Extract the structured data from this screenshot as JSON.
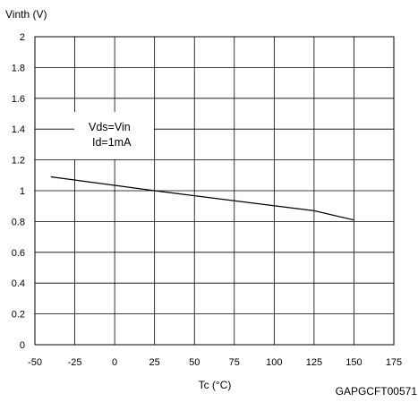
{
  "chart_data": {
    "type": "line",
    "ylabel": "Vinth (V)",
    "xlabel": "Tc (°C)",
    "xlim": [
      -50,
      175
    ],
    "ylim": [
      0,
      2
    ],
    "x_ticks": [
      -50,
      -25,
      0,
      25,
      50,
      75,
      100,
      125,
      150,
      175
    ],
    "x_tick_labels": [
      "-50",
      "-25",
      "0",
      "25",
      "50",
      "75",
      "100",
      "125",
      "150",
      "175"
    ],
    "y_ticks": [
      0,
      0.2,
      0.4,
      0.6,
      0.8,
      1,
      1.2,
      1.4,
      1.6,
      1.8,
      2
    ],
    "y_tick_labels": [
      "0",
      "0.2",
      "0.4",
      "0.6",
      "0.8",
      "1",
      "1.2",
      "1.4",
      "1.6",
      "1.8",
      "2"
    ],
    "grid": true,
    "annotation": [
      "Vds=Vin",
      "Id=1mA"
    ],
    "code": "GAPGCFT00571",
    "series": [
      {
        "x": [
          -40,
          25,
          125,
          150
        ],
        "y": [
          1.09,
          1.0,
          0.87,
          0.81
        ]
      }
    ]
  }
}
